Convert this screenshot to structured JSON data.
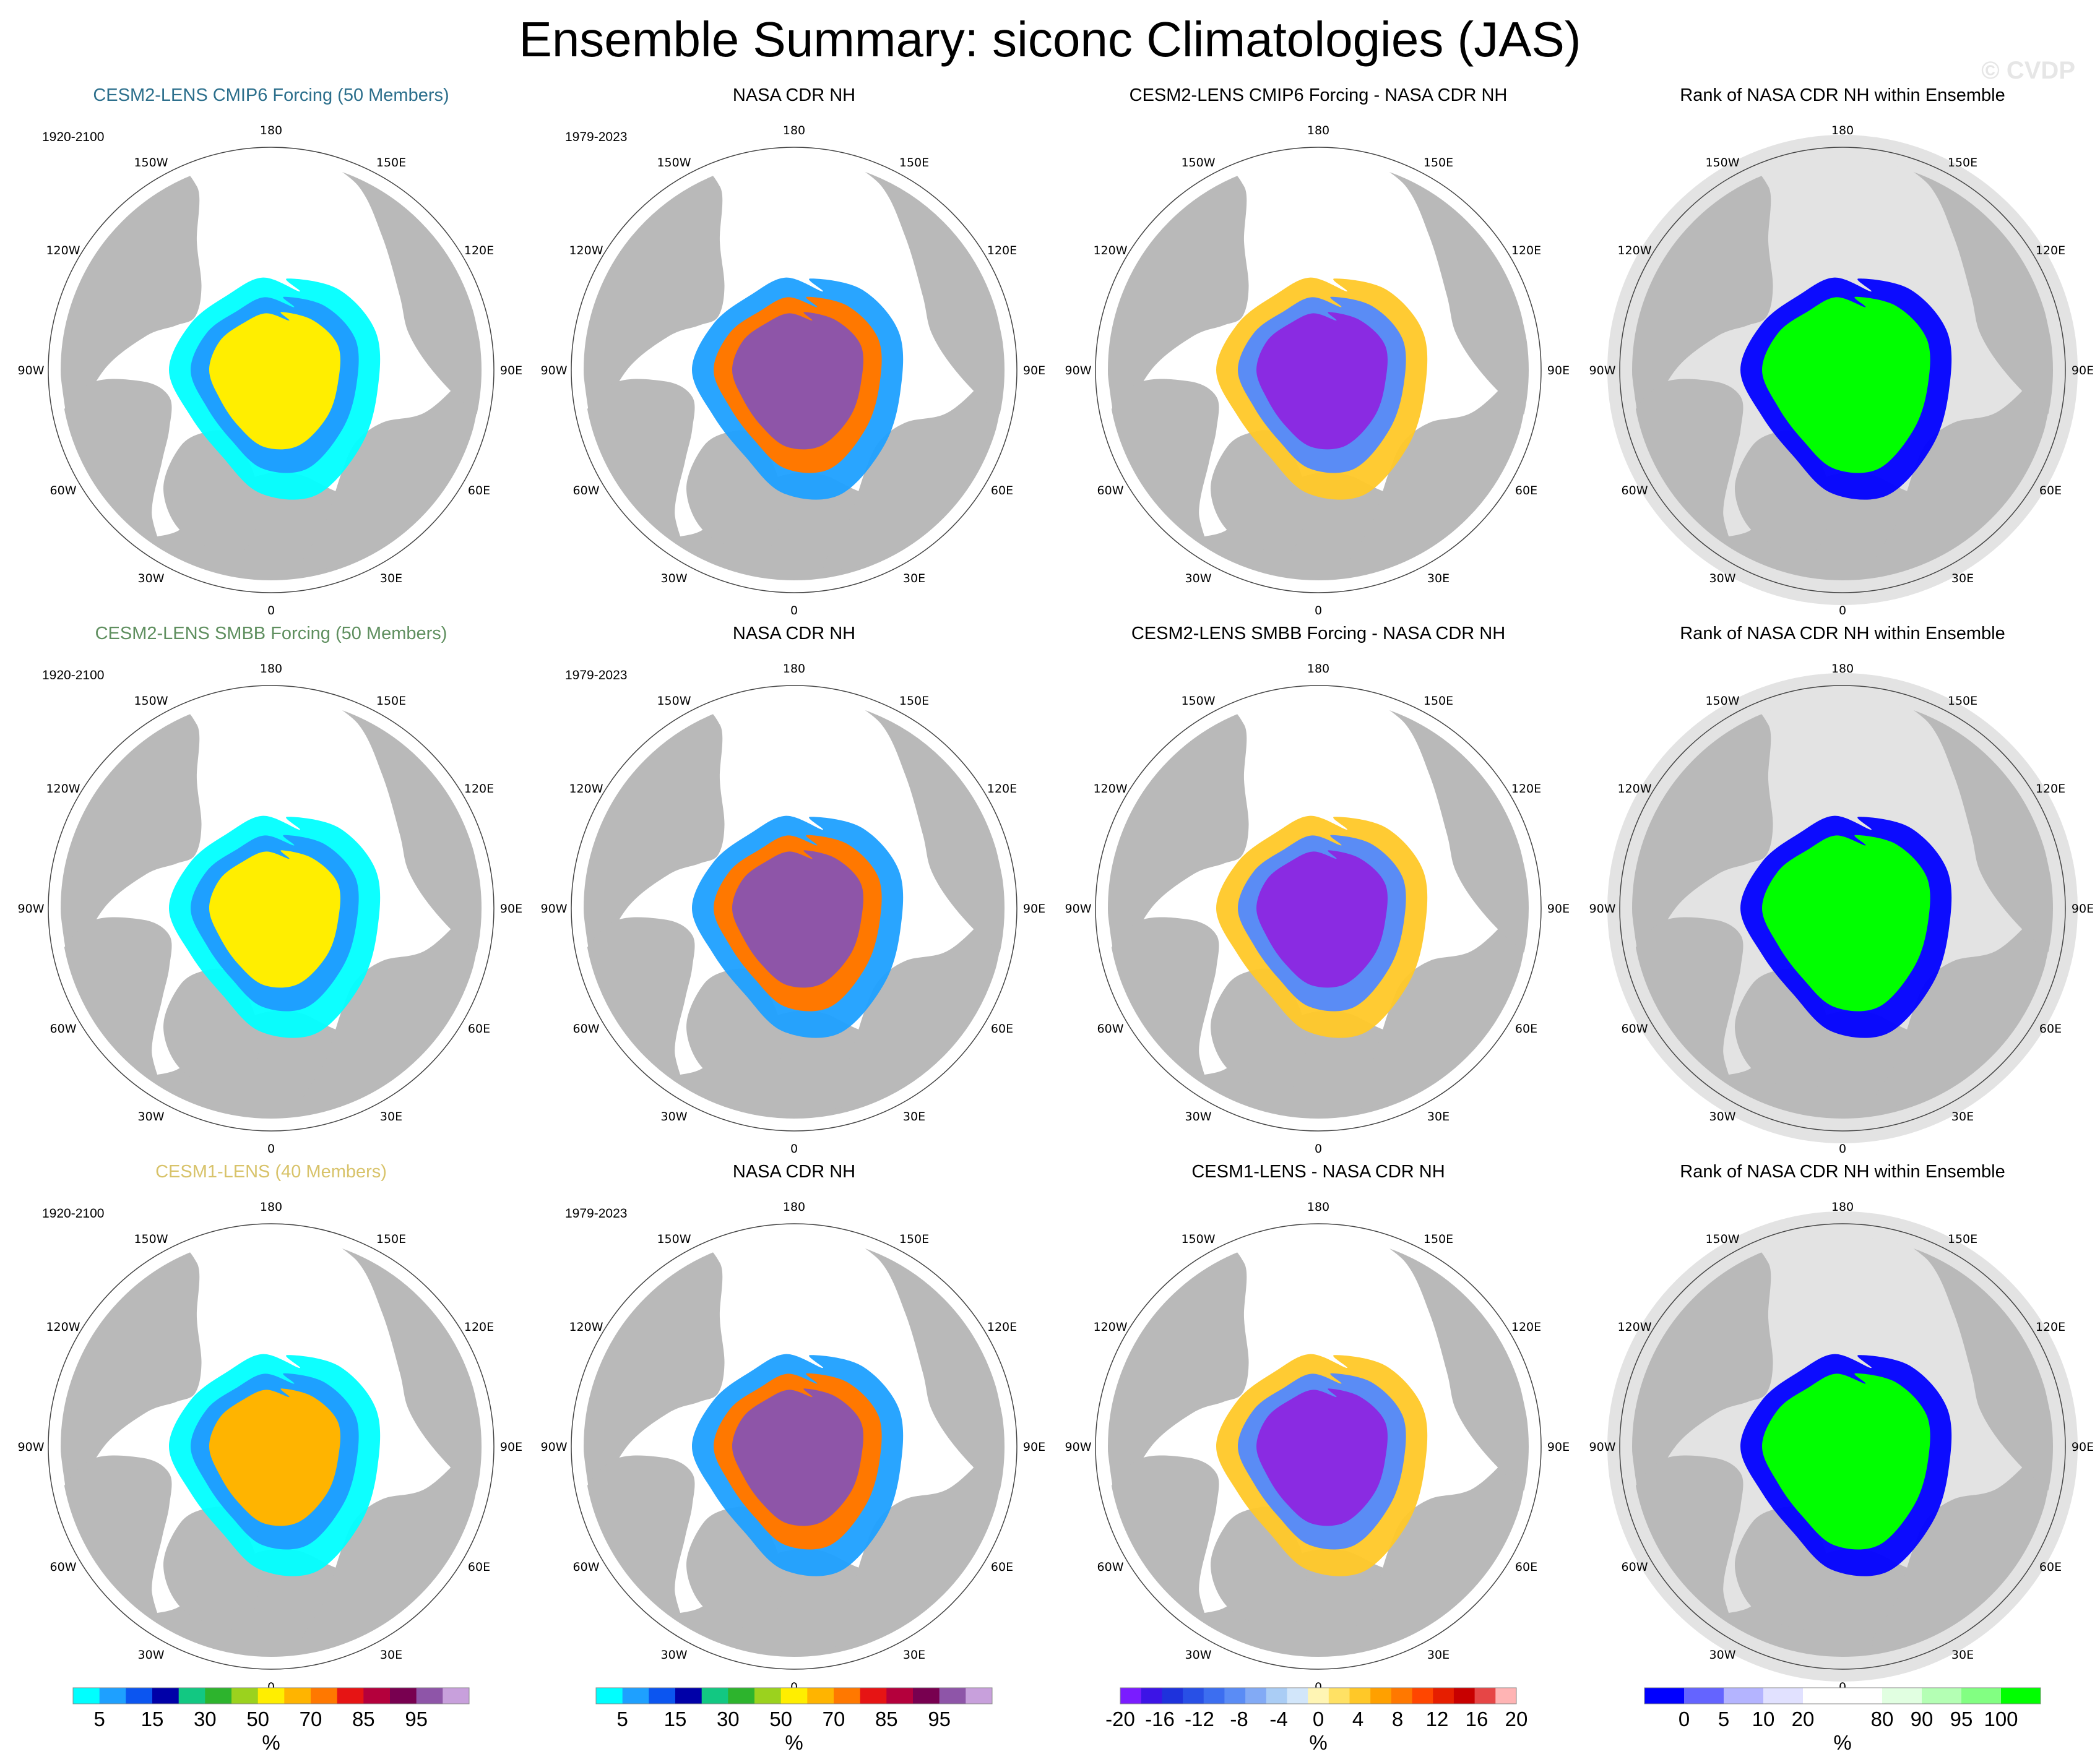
{
  "title": "Ensemble Summary: siconc Climatologies (JAS)",
  "watermark": "© CVDP",
  "colors": {
    "land": "#b9b9b9",
    "rank_background": "#e3e3e3",
    "ocean": "#ffffff",
    "title_cmip6": "#2c6f8c",
    "title_smbb": "#5f8f5f",
    "title_cesm1": "#d8c36a"
  },
  "longitude_labels": [
    "180",
    "150E",
    "120E",
    "90E",
    "60E",
    "30E",
    "0",
    "30W",
    "60W",
    "90W",
    "120W",
    "150W"
  ],
  "rows": [
    {
      "model_title": "CESM2-LENS CMIP6 Forcing (50 Members)",
      "model_title_color": "#2c6f8c",
      "model_period": "1920-2100",
      "obs_title": "NASA CDR NH",
      "obs_period": "1979-2023",
      "diff_title": "CESM2-LENS CMIP6 Forcing - NASA CDR NH",
      "rank_title": "Rank of NASA CDR NH within Ensemble",
      "model_core_color": "#ffee00",
      "obs_core_color": "#8e55a8",
      "diff_core_color": "#8a2be2",
      "rank_core_color": "#00ff00"
    },
    {
      "model_title": "CESM2-LENS SMBB Forcing (50 Members)",
      "model_title_color": "#5f8f5f",
      "model_period": "1920-2100",
      "obs_title": "NASA CDR NH",
      "obs_period": "1979-2023",
      "diff_title": "CESM2-LENS SMBB Forcing - NASA CDR NH",
      "rank_title": "Rank of NASA CDR NH within Ensemble",
      "model_core_color": "#ffee00",
      "obs_core_color": "#8e55a8",
      "diff_core_color": "#8a2be2",
      "rank_core_color": "#00ff00"
    },
    {
      "model_title": "CESM1-LENS (40 Members)",
      "model_title_color": "#d8c36a",
      "model_period": "1920-2100",
      "obs_title": "NASA CDR NH",
      "obs_period": "1979-2023",
      "diff_title": "CESM1-LENS - NASA CDR NH",
      "rank_title": "Rank of NASA CDR NH within Ensemble",
      "model_core_color": "#ffb400",
      "obs_core_color": "#8e55a8",
      "diff_core_color": "#8a2be2",
      "rank_core_color": "#00ff00"
    }
  ],
  "chart_data": {
    "type": "heatmap",
    "projection": "polar stereographic (North Pole)",
    "variable": "siconc",
    "season": "JAS",
    "colorbars": [
      {
        "name": "siconc",
        "unit": "%",
        "colors": [
          "#00ffff",
          "#1ea0ff",
          "#0b55f0",
          "#0000a8",
          "#12c882",
          "#2db42d",
          "#9bd21e",
          "#ffee00",
          "#ffb400",
          "#ff7800",
          "#e61414",
          "#b4003c",
          "#780050",
          "#8e55a8",
          "#c8a0dc"
        ],
        "tick_labels": [
          "5",
          "15",
          "30",
          "50",
          "70",
          "85",
          "95"
        ]
      },
      {
        "name": "difference",
        "unit": "%",
        "colors": [
          "#7a1cff",
          "#3c14e6",
          "#1e32dc",
          "#2850e6",
          "#3c6ef0",
          "#5a8cf5",
          "#82aaf5",
          "#aacdf5",
          "#d2e6fa",
          "#fff5b4",
          "#ffe164",
          "#ffc828",
          "#ffa000",
          "#ff7800",
          "#ff4600",
          "#e61e00",
          "#c80000",
          "#e64646",
          "#ffb4b4"
        ],
        "tick_labels": [
          "-20",
          "-16",
          "-12",
          "-8",
          "-4",
          "0",
          "4",
          "8",
          "12",
          "16",
          "20"
        ]
      },
      {
        "name": "rank",
        "unit": "%",
        "colors": [
          "#0000ff",
          "#6464ff",
          "#b4b4ff",
          "#e1e1ff",
          "#ffffff",
          "#ffffff",
          "#e1ffe1",
          "#b4ffb4",
          "#82ff82",
          "#00ff00"
        ],
        "tick_labels": [
          "0",
          "5",
          "10",
          "20",
          "80",
          "90",
          "95",
          "100"
        ]
      }
    ]
  }
}
